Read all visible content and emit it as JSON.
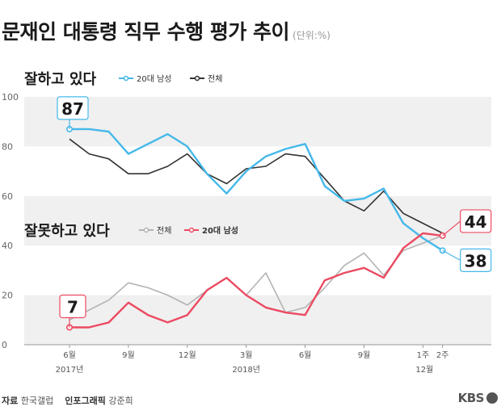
{
  "title": "문재인 대통령 직무 수행 평가 추이",
  "unit": "(단위:%)",
  "footer": {
    "source_label": "자료",
    "source_value": "한국갤럽",
    "credit_label": "인포그래픽",
    "credit_value": "강준희"
  },
  "logo": "KBS",
  "colors": {
    "blue": "#45b8ea",
    "red": "#ec4a62",
    "dark": "#333333",
    "gray": "#b3b3b3",
    "band": "#f0f0f0"
  },
  "chart_data": {
    "type": "line",
    "ylim": [
      0,
      100
    ],
    "yticks": [
      "0",
      "20",
      "40",
      "60",
      "80",
      "100"
    ],
    "xlabels": [
      {
        "idx": 0,
        "text": "6월",
        "sub": "2017년"
      },
      {
        "idx": 3,
        "text": "9월"
      },
      {
        "idx": 6,
        "text": "12월"
      },
      {
        "idx": 9,
        "text": "3월",
        "sub": "2018년"
      },
      {
        "idx": 12,
        "text": "6월"
      },
      {
        "idx": 15,
        "text": "9월"
      },
      {
        "idx": 18,
        "text": "1주",
        "sub": "12월"
      },
      {
        "idx": 19,
        "text": "2주"
      }
    ],
    "groups": [
      {
        "label": "잘하고 있다",
        "series": [
          {
            "name": "20대 남성",
            "color": "blue",
            "values": [
              87,
              87,
              86,
              77,
              81,
              85,
              80,
              69,
              61,
              70,
              76,
              79,
              81,
              64,
              58,
              59,
              63,
              49,
              43,
              38
            ]
          },
          {
            "name": "전체",
            "color": "dark",
            "values": [
              83,
              77,
              75,
              69,
              69,
              72,
              77,
              69,
              65,
              71,
              72,
              77,
              76,
              67,
              58,
              54,
              62,
              53,
              49,
              45
            ]
          }
        ]
      },
      {
        "label": "잘못하고 있다",
        "series": [
          {
            "name": "전체",
            "color": "gray",
            "values": [
              10,
              14,
              18,
              25,
              23,
              20,
              16,
              22,
              27,
              20,
              29,
              13,
              15,
              23,
              32,
              37,
              28,
              38,
              41,
              44
            ]
          },
          {
            "name": "20대 남성",
            "color": "red",
            "values": [
              7,
              7,
              9,
              17,
              12,
              9,
              12,
              22,
              27,
              20,
              15,
              13,
              12,
              26,
              29,
              31,
              27,
              39,
              45,
              44
            ]
          }
        ]
      }
    ],
    "callouts": [
      {
        "text": "87",
        "series": "20대 남성",
        "group": 0,
        "idx": 0,
        "color": "blue",
        "pos": "above"
      },
      {
        "text": "38",
        "series": "20대 남성",
        "group": 0,
        "idx": 19,
        "color": "blue",
        "pos": "right-below"
      },
      {
        "text": "44",
        "series": "20대 남성",
        "group": 1,
        "idx": 19,
        "color": "red",
        "pos": "right-above"
      },
      {
        "text": "7",
        "series": "20대 남성",
        "group": 1,
        "idx": 0,
        "color": "red",
        "pos": "above"
      }
    ]
  }
}
